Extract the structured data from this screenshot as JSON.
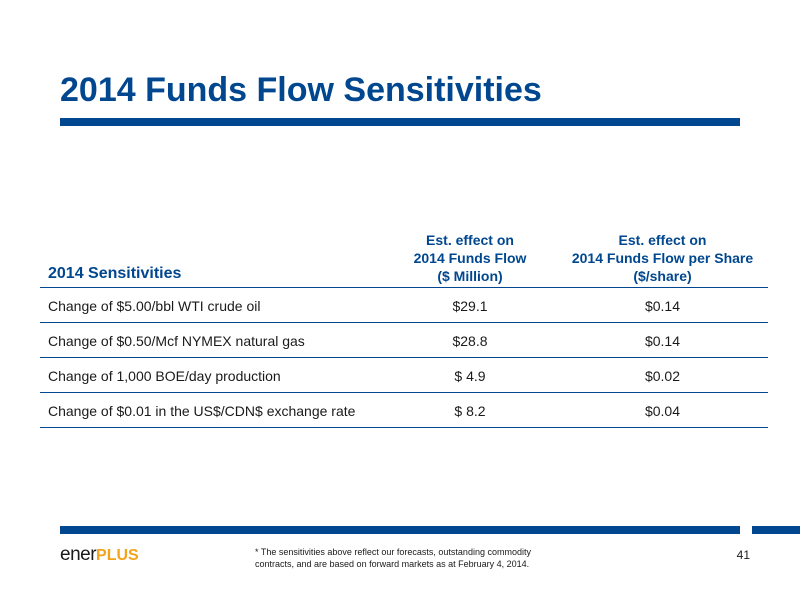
{
  "title": "2014 Funds Flow Sensitivities",
  "table": {
    "row_header": "2014 Sensitivities",
    "col_a_lines": [
      "Est. effect on",
      "2014 Funds Flow",
      "($ Million)"
    ],
    "col_b_lines": [
      "Est. effect on",
      "2014 Funds Flow per Share",
      "($/share)"
    ],
    "rows": [
      {
        "label": "Change of $5.00/bbl WTI crude oil",
        "a": "$29.1",
        "b": "$0.14"
      },
      {
        "label": "Change of $0.50/Mcf NYMEX natural gas",
        "a": "$28.8",
        "b": "$0.14"
      },
      {
        "label": "Change of 1,000 BOE/day production",
        "a": "$ 4.9",
        "b": "$0.02"
      },
      {
        "label": "Change of $0.01 in the US$/CDN$ exchange rate",
        "a": "$ 8.2",
        "b": "$0.04"
      }
    ]
  },
  "footer": {
    "logo_part1": "ener",
    "logo_part2": "PLUS",
    "footnote_line1": "* The sensitivities above reflect our forecasts, outstanding commodity",
    "footnote_line2": "contracts, and are based on forward markets as at February 4, 2014.",
    "page_number": "41"
  },
  "colors": {
    "brand_blue": "#00478f",
    "logo_orange": "#f2a41c"
  }
}
